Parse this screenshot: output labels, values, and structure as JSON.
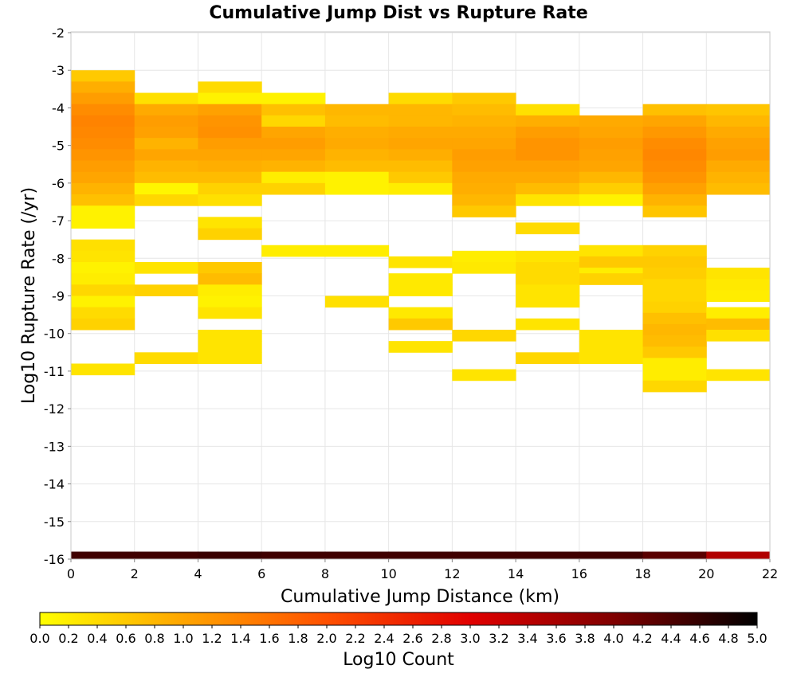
{
  "chart_data": {
    "type": "heatmap",
    "title": "Cumulative Jump Dist vs Rupture Rate",
    "xlabel": "Cumulative Jump Distance (km)",
    "ylabel": "Log10 Rupture Rate (/yr)",
    "xlim": [
      0,
      22
    ],
    "ylim": [
      -16,
      -2
    ],
    "xticks": [
      0,
      2,
      4,
      6,
      8,
      10,
      12,
      14,
      16,
      18,
      20,
      22
    ],
    "yticks": [
      -2,
      -3,
      -4,
      -5,
      -6,
      -7,
      -8,
      -9,
      -10,
      -11,
      -12,
      -13,
      -14,
      -15,
      -16
    ],
    "grid": true,
    "x_bin_width": 2,
    "y_bin_height": 0.3,
    "colorbar": {
      "label": "Log10 Count",
      "range": [
        0,
        5
      ],
      "ticks": [
        "0.0",
        "0.2",
        "0.4",
        "0.6",
        "0.8",
        "1.0",
        "1.2",
        "1.4",
        "1.6",
        "1.8",
        "2.0",
        "2.2",
        "2.4",
        "2.6",
        "2.8",
        "3.0",
        "3.2",
        "3.4",
        "3.6",
        "3.8",
        "4.0",
        "4.2",
        "4.4",
        "4.6",
        "4.8",
        "5.0"
      ],
      "colors": [
        "#ffff00",
        "#ffa500",
        "#ff5000",
        "#e10000",
        "#800000",
        "#000000"
      ]
    },
    "columns": [
      {
        "x": 1,
        "cells": [
          [
            -3.15,
            0.6
          ],
          [
            -3.45,
            0.9
          ],
          [
            -3.75,
            1.1
          ],
          [
            -4.05,
            1.3
          ],
          [
            -4.35,
            1.4
          ],
          [
            -4.65,
            1.35
          ],
          [
            -4.95,
            1.3
          ],
          [
            -5.25,
            1.2
          ],
          [
            -5.55,
            1.1
          ],
          [
            -5.85,
            1.0
          ],
          [
            -6.15,
            0.85
          ],
          [
            -6.45,
            0.7
          ],
          [
            -6.75,
            0.15
          ],
          [
            -7.05,
            0.15
          ],
          [
            -7.65,
            0.35
          ],
          [
            -7.95,
            0.3
          ],
          [
            -8.25,
            0.15
          ],
          [
            -8.55,
            0.2
          ],
          [
            -8.85,
            0.45
          ],
          [
            -9.15,
            0.15
          ],
          [
            -9.45,
            0.4
          ],
          [
            -9.75,
            0.5
          ],
          [
            -10.95,
            0.3
          ],
          [
            -15.95,
            4.5
          ]
        ]
      },
      {
        "x": 3,
        "cells": [
          [
            -3.75,
            0.35
          ],
          [
            -4.05,
            0.95
          ],
          [
            -4.35,
            1.1
          ],
          [
            -4.65,
            1.05
          ],
          [
            -4.95,
            0.85
          ],
          [
            -5.25,
            1.0
          ],
          [
            -5.55,
            0.85
          ],
          [
            -5.85,
            0.75
          ],
          [
            -6.15,
            0.1
          ],
          [
            -6.45,
            0.45
          ],
          [
            -8.25,
            0.3
          ],
          [
            -8.85,
            0.5
          ],
          [
            -10.65,
            0.4
          ],
          [
            -15.95,
            4.5
          ]
        ]
      },
      {
        "x": 5,
        "cells": [
          [
            -3.45,
            0.4
          ],
          [
            -3.75,
            0.15
          ],
          [
            -4.05,
            1.05
          ],
          [
            -4.35,
            1.2
          ],
          [
            -4.65,
            1.25
          ],
          [
            -4.95,
            1.1
          ],
          [
            -5.25,
            1.0
          ],
          [
            -5.55,
            0.9
          ],
          [
            -5.85,
            0.75
          ],
          [
            -6.15,
            0.5
          ],
          [
            -6.45,
            0.35
          ],
          [
            -7.05,
            0.3
          ],
          [
            -7.35,
            0.5
          ],
          [
            -8.25,
            0.6
          ],
          [
            -8.55,
            0.75
          ],
          [
            -8.85,
            0.2
          ],
          [
            -9.15,
            0.15
          ],
          [
            -9.45,
            0.3
          ],
          [
            -10.05,
            0.3
          ],
          [
            -10.35,
            0.3
          ],
          [
            -10.65,
            0.3
          ],
          [
            -15.95,
            4.55
          ]
        ]
      },
      {
        "x": 7,
        "cells": [
          [
            -3.75,
            0.15
          ],
          [
            -4.05,
            0.7
          ],
          [
            -4.35,
            0.45
          ],
          [
            -4.65,
            1.0
          ],
          [
            -4.95,
            1.1
          ],
          [
            -5.25,
            1.0
          ],
          [
            -5.55,
            0.85
          ],
          [
            -5.85,
            0.2
          ],
          [
            -6.15,
            0.5
          ],
          [
            -7.8,
            0.2
          ],
          [
            -15.95,
            4.5
          ]
        ]
      },
      {
        "x": 9,
        "cells": [
          [
            -4.05,
            0.8
          ],
          [
            -4.35,
            0.75
          ],
          [
            -4.65,
            0.9
          ],
          [
            -4.95,
            0.95
          ],
          [
            -5.25,
            0.85
          ],
          [
            -5.55,
            0.75
          ],
          [
            -5.85,
            0.15
          ],
          [
            -6.15,
            0.15
          ],
          [
            -7.8,
            0.2
          ],
          [
            -9.15,
            0.35
          ],
          [
            -15.95,
            4.5
          ]
        ]
      },
      {
        "x": 11,
        "cells": [
          [
            -3.75,
            0.4
          ],
          [
            -4.05,
            0.8
          ],
          [
            -4.35,
            0.8
          ],
          [
            -4.65,
            0.95
          ],
          [
            -4.95,
            1.0
          ],
          [
            -5.25,
            0.9
          ],
          [
            -5.55,
            0.75
          ],
          [
            -5.85,
            0.6
          ],
          [
            -6.15,
            0.2
          ],
          [
            -8.1,
            0.3
          ],
          [
            -8.55,
            0.25
          ],
          [
            -8.85,
            0.25
          ],
          [
            -9.45,
            0.25
          ],
          [
            -9.75,
            0.6
          ],
          [
            -10.35,
            0.3
          ],
          [
            -15.95,
            4.5
          ]
        ]
      },
      {
        "x": 13,
        "cells": [
          [
            -3.75,
            0.6
          ],
          [
            -4.05,
            0.75
          ],
          [
            -4.35,
            0.85
          ],
          [
            -4.65,
            0.95
          ],
          [
            -4.95,
            1.0
          ],
          [
            -5.25,
            1.1
          ],
          [
            -5.55,
            1.05
          ],
          [
            -5.85,
            0.95
          ],
          [
            -6.15,
            0.9
          ],
          [
            -6.45,
            0.8
          ],
          [
            -6.75,
            0.6
          ],
          [
            -7.95,
            0.2
          ],
          [
            -8.25,
            0.25
          ],
          [
            -10.05,
            0.45
          ],
          [
            -11.1,
            0.3
          ],
          [
            -15.95,
            4.5
          ]
        ]
      },
      {
        "x": 15,
        "cells": [
          [
            -4.05,
            0.35
          ],
          [
            -4.35,
            0.9
          ],
          [
            -4.65,
            1.1
          ],
          [
            -4.95,
            1.2
          ],
          [
            -5.25,
            1.2
          ],
          [
            -5.55,
            1.05
          ],
          [
            -5.85,
            0.95
          ],
          [
            -6.15,
            0.75
          ],
          [
            -6.45,
            0.3
          ],
          [
            -7.2,
            0.4
          ],
          [
            -7.95,
            0.3
          ],
          [
            -8.25,
            0.4
          ],
          [
            -8.55,
            0.4
          ],
          [
            -8.85,
            0.3
          ],
          [
            -9.15,
            0.3
          ],
          [
            -9.75,
            0.3
          ],
          [
            -10.65,
            0.45
          ],
          [
            -15.95,
            4.5
          ]
        ]
      },
      {
        "x": 17,
        "cells": [
          [
            -4.35,
            0.95
          ],
          [
            -4.65,
            1.0
          ],
          [
            -4.95,
            1.1
          ],
          [
            -5.25,
            1.05
          ],
          [
            -5.55,
            1.0
          ],
          [
            -5.85,
            0.8
          ],
          [
            -6.15,
            0.55
          ],
          [
            -6.45,
            0.15
          ],
          [
            -7.8,
            0.3
          ],
          [
            -8.1,
            0.6
          ],
          [
            -8.4,
            0.2
          ],
          [
            -8.55,
            0.5
          ],
          [
            -10.05,
            0.3
          ],
          [
            -10.35,
            0.3
          ],
          [
            -10.65,
            0.3
          ],
          [
            -15.95,
            4.5
          ]
        ]
      },
      {
        "x": 19,
        "cells": [
          [
            -4.05,
            0.7
          ],
          [
            -4.35,
            1.0
          ],
          [
            -4.65,
            1.15
          ],
          [
            -4.95,
            1.3
          ],
          [
            -5.25,
            1.35
          ],
          [
            -5.55,
            1.3
          ],
          [
            -5.85,
            1.2
          ],
          [
            -6.15,
            1.05
          ],
          [
            -6.45,
            0.85
          ],
          [
            -6.75,
            0.65
          ],
          [
            -7.8,
            0.5
          ],
          [
            -8.1,
            0.6
          ],
          [
            -8.4,
            0.55
          ],
          [
            -8.7,
            0.45
          ],
          [
            -9.0,
            0.45
          ],
          [
            -9.3,
            0.5
          ],
          [
            -9.6,
            0.7
          ],
          [
            -9.9,
            0.8
          ],
          [
            -10.2,
            0.75
          ],
          [
            -10.5,
            0.6
          ],
          [
            -10.8,
            0.2
          ],
          [
            -11.1,
            0.2
          ],
          [
            -11.4,
            0.45
          ],
          [
            -15.95,
            4.3
          ]
        ]
      },
      {
        "x": 21,
        "cells": [
          [
            -4.05,
            0.65
          ],
          [
            -4.35,
            0.8
          ],
          [
            -4.65,
            0.95
          ],
          [
            -4.95,
            1.05
          ],
          [
            -5.25,
            1.1
          ],
          [
            -5.55,
            0.95
          ],
          [
            -5.85,
            0.85
          ],
          [
            -6.15,
            0.75
          ],
          [
            -8.4,
            0.3
          ],
          [
            -8.7,
            0.25
          ],
          [
            -9.0,
            0.2
          ],
          [
            -9.45,
            0.2
          ],
          [
            -9.75,
            0.75
          ],
          [
            -10.05,
            0.35
          ],
          [
            -11.1,
            0.3
          ],
          [
            -15.95,
            3.5
          ]
        ]
      }
    ]
  }
}
